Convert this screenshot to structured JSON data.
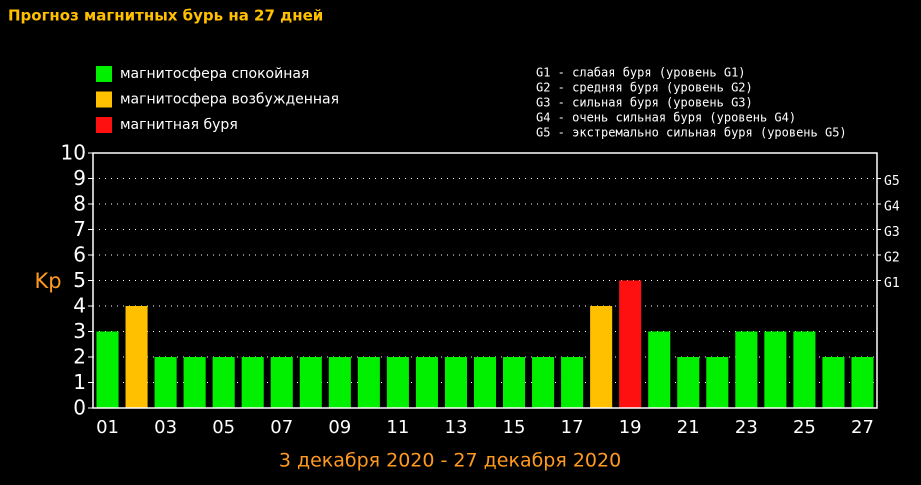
{
  "chart_data": {
    "type": "bar",
    "title": "Прогноз магнитных бурь на 27 дней",
    "legend": [
      {
        "label": "магнитосфера спокойная",
        "color": "#00f000"
      },
      {
        "label": "магнитосфера возбужденная",
        "color": "#ffc000"
      },
      {
        "label": "магнитная буря",
        "color": "#ff1010"
      }
    ],
    "storm_levels": [
      "G1 - слабая буря (уровень G1)",
      "G2 - средняя буря (уровень G2)",
      "G3 - сильная буря (уровень G3)",
      "G4 - очень сильная буря (уровень G4)",
      "G5 - экстремально сильная буря (уровень G5)"
    ],
    "ylabel": "Kp",
    "xlabel": "3 декабря 2020 - 27 декабря 2020",
    "categories": [
      "01",
      null,
      "03",
      null,
      "05",
      null,
      "07",
      null,
      "09",
      null,
      "11",
      null,
      "13",
      null,
      "15",
      null,
      "17",
      null,
      "19",
      null,
      "21",
      null,
      "23",
      null,
      "25",
      null,
      "27"
    ],
    "values": [
      3,
      4,
      2,
      2,
      2,
      2,
      2,
      2,
      2,
      2,
      2,
      2,
      2,
      2,
      2,
      2,
      2,
      4,
      5,
      3,
      2,
      2,
      3,
      3,
      3,
      2,
      2
    ],
    "colors": [
      "#00f000",
      "#ffc000",
      "#00f000",
      "#00f000",
      "#00f000",
      "#00f000",
      "#00f000",
      "#00f000",
      "#00f000",
      "#00f000",
      "#00f000",
      "#00f000",
      "#00f000",
      "#00f000",
      "#00f000",
      "#00f000",
      "#00f000",
      "#ffc000",
      "#ff1010",
      "#00f000",
      "#00f000",
      "#00f000",
      "#00f000",
      "#00f000",
      "#00f000",
      "#00f000",
      "#00f000"
    ],
    "ylim": [
      0,
      10
    ],
    "yticks": [
      0,
      1,
      2,
      3,
      4,
      5,
      6,
      7,
      8,
      9,
      10
    ],
    "gticks": [
      {
        "value": 5,
        "label": "G1"
      },
      {
        "value": 6,
        "label": "G2"
      },
      {
        "value": 7,
        "label": "G3"
      },
      {
        "value": 8,
        "label": "G4"
      },
      {
        "value": 9,
        "label": "G5"
      }
    ],
    "grid": true
  }
}
